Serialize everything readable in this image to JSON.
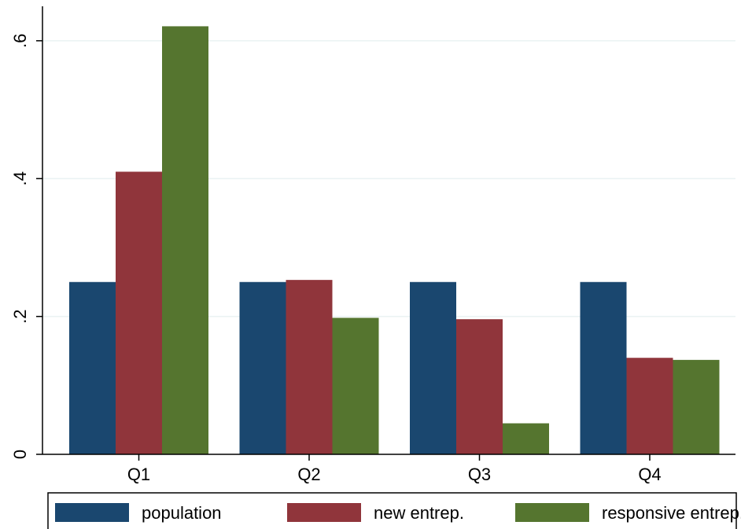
{
  "chart_data": {
    "type": "bar",
    "title": "",
    "xlabel": "",
    "ylabel": "",
    "categories": [
      "Q1",
      "Q2",
      "Q3",
      "Q4"
    ],
    "series": [
      {
        "name": "population",
        "color": "#1a476f",
        "values": [
          0.25,
          0.25,
          0.25,
          0.25
        ]
      },
      {
        "name": "new entrep.",
        "color": "#90353b",
        "values": [
          0.41,
          0.253,
          0.196,
          0.14
        ]
      },
      {
        "name": "responsive entrep.",
        "color": "#55752f",
        "values": [
          0.621,
          0.198,
          0.045,
          0.137
        ]
      }
    ],
    "ylim": [
      0,
      0.65
    ],
    "yticks": [
      0,
      0.2,
      0.4,
      0.6
    ],
    "ytick_labels": [
      "0",
      ".2",
      ".4",
      ".6"
    ],
    "grid": true,
    "grid_color": "#eaf2f3",
    "legend_position": "bottom"
  }
}
